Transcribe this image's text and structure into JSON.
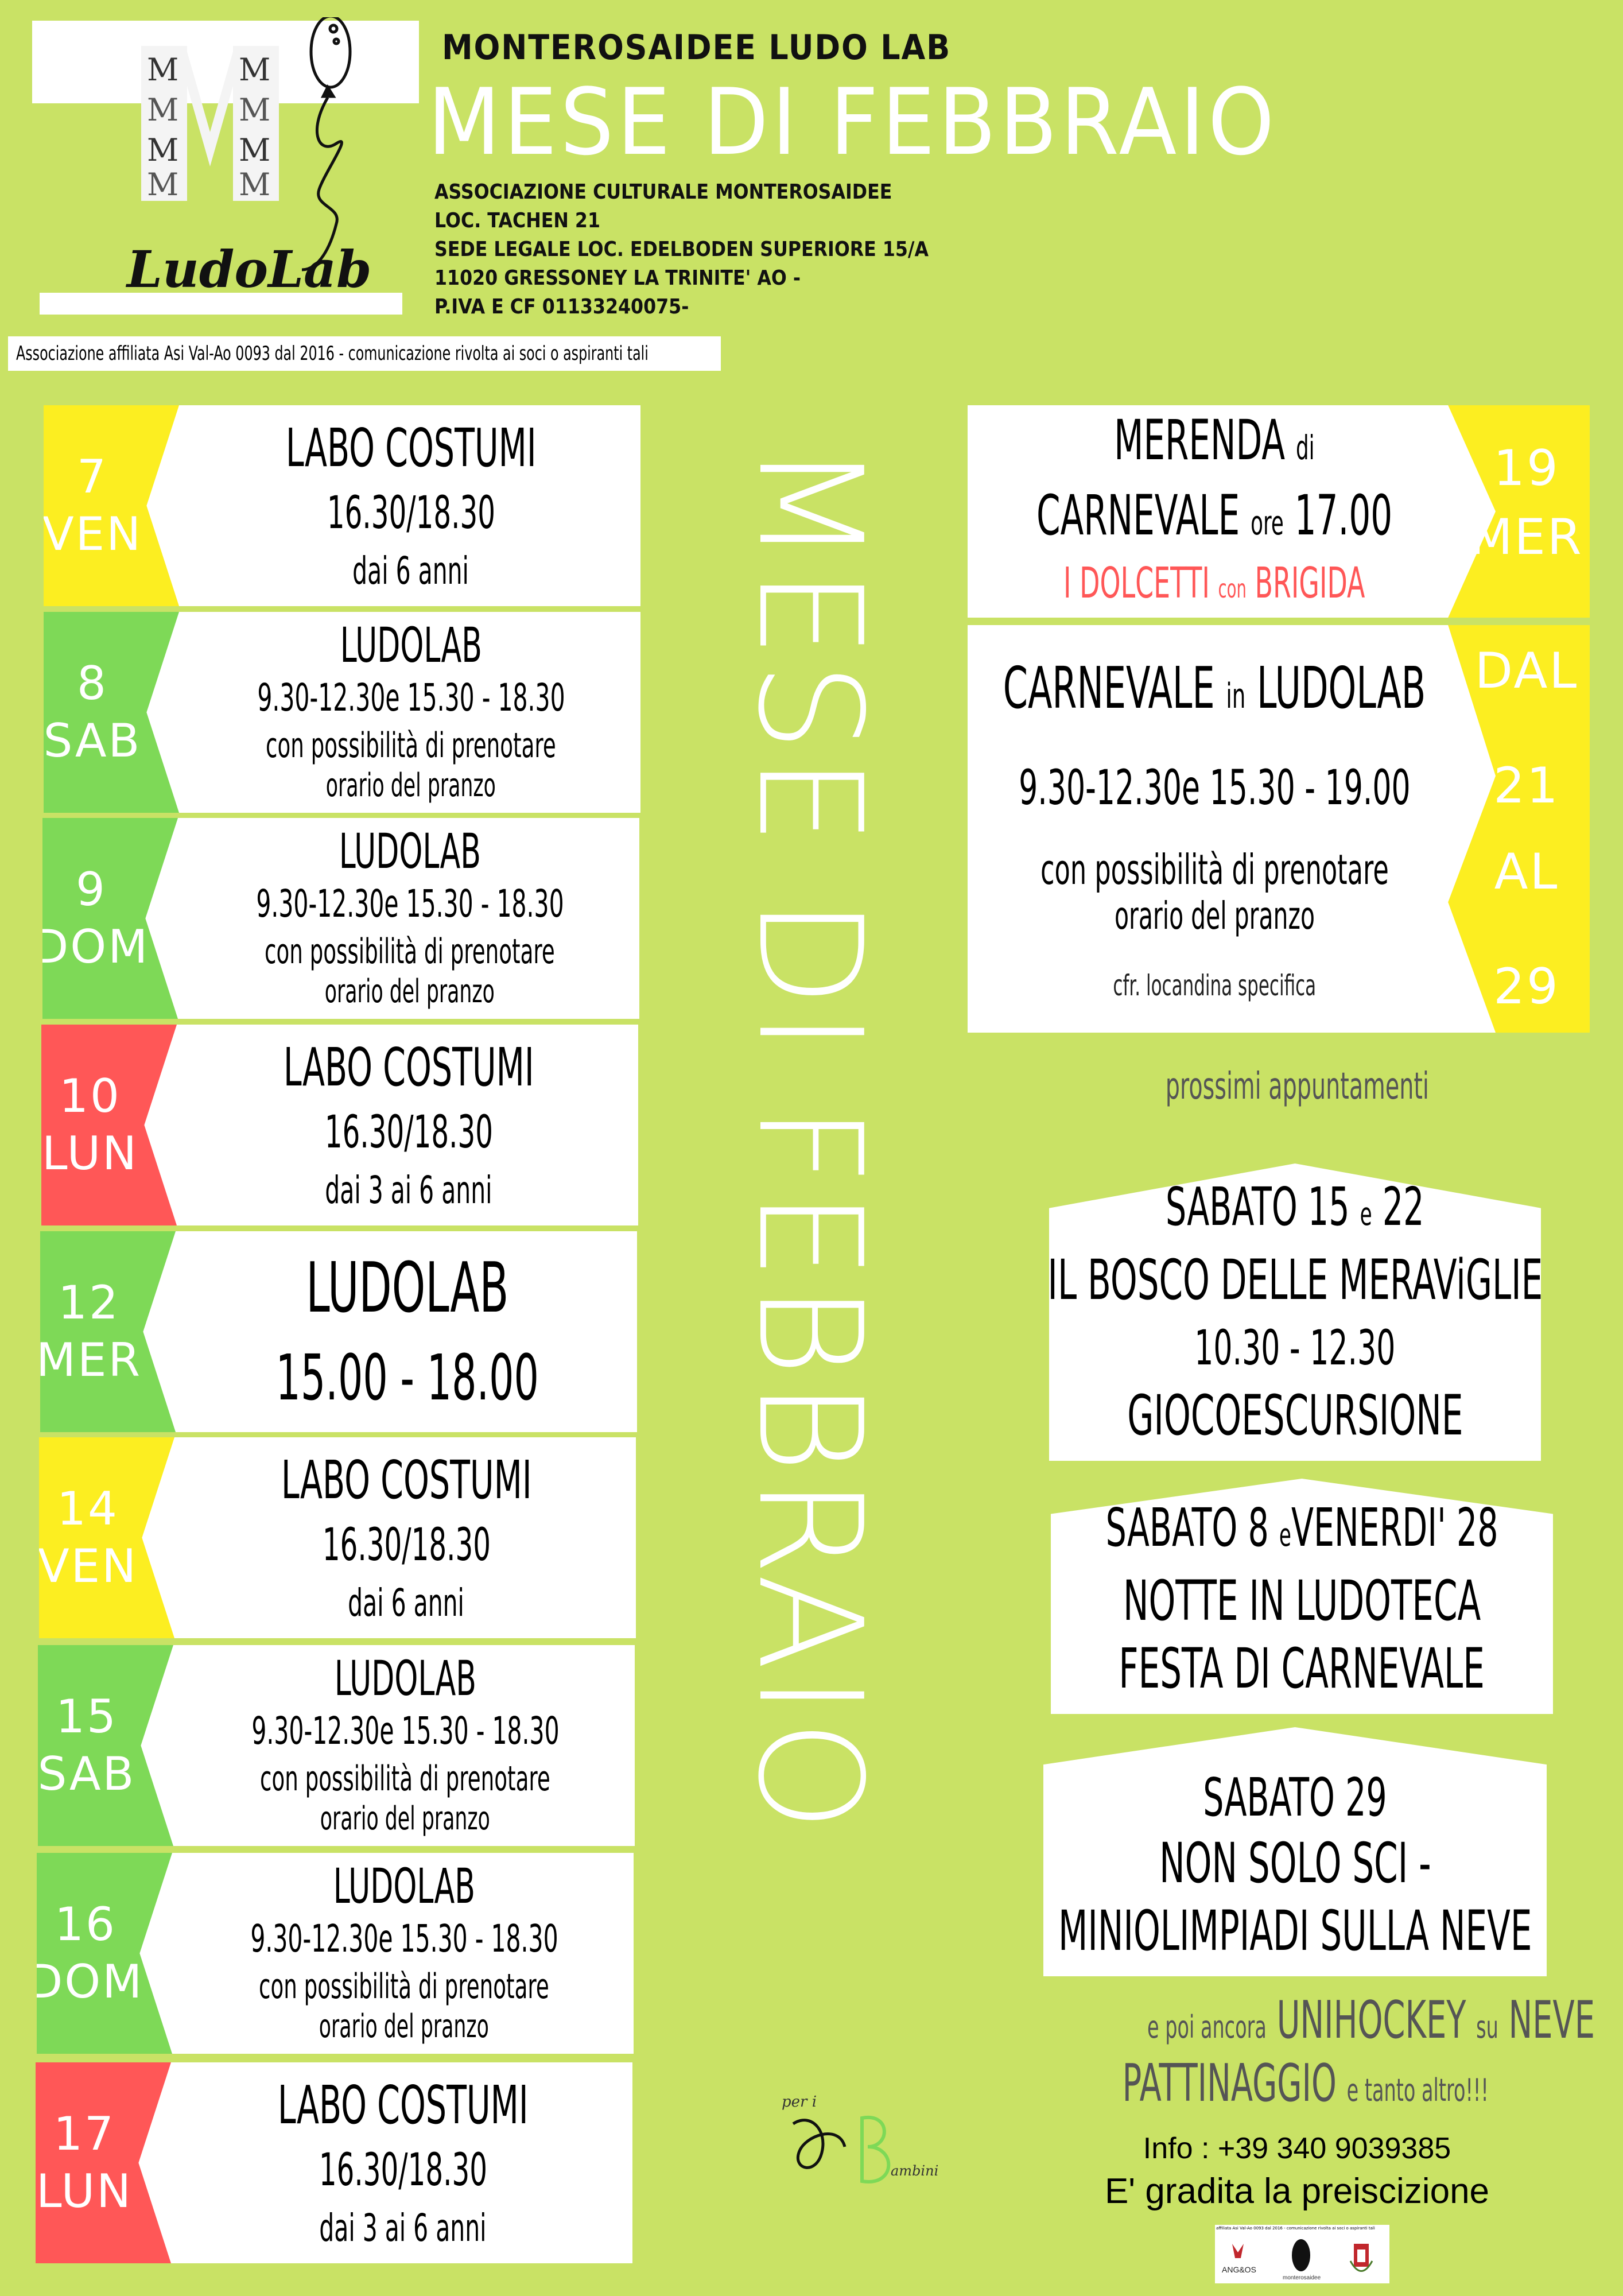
{
  "header": {
    "logo_text": "LudoLab",
    "logo_letters": "M",
    "brand": "MONTEROSAIDEE LUDO LAB",
    "title": "MESE DI FEBBRAIO",
    "address": [
      "ASSOCIAZIONE CULTURALE MONTEROSAIDEE",
      "LOC. TACHEN 21",
      "SEDE LEGALE LOC. EDELBODEN SUPERIORE 15/A",
      "11020 GRESSONEY LA TRINITE' AO -",
      "P.IVA E CF 01133240075-"
    ],
    "affiliation": "Associazione affiliata Asi Val-Ao 0093 dal 2016 - comunicazione rivolta ai soci o aspiranti tali"
  },
  "colors": {
    "background": "#c9e265",
    "yellow": "#fcee21",
    "green": "#7ed957",
    "red": "#ff5757",
    "white": "#ffffff"
  },
  "vertical_title": "MESE DI FEBBRAIO",
  "left_events": [
    {
      "num": "7",
      "day": "VEN",
      "color": "#fcee21",
      "kind": "costumi",
      "title": "LABO COSTUMI",
      "time": "16.30/18.30",
      "age": "dai 6 anni"
    },
    {
      "num": "8",
      "day": "SAB",
      "color": "#7ed957",
      "kind": "ludolab",
      "title": "LUDOLAB",
      "time": "9.30-12.30e 15.30 - 18.30",
      "note1": "con possibilità di prenotare",
      "note2": "orario del pranzo"
    },
    {
      "num": "9",
      "day": "DOM",
      "color": "#7ed957",
      "kind": "ludolab",
      "title": "LUDOLAB",
      "time": "9.30-12.30e 15.30 - 18.30",
      "note1": "con possibilità di prenotare",
      "note2": "orario del pranzo"
    },
    {
      "num": "10",
      "day": "LUN",
      "color": "#ff5757",
      "kind": "costumi",
      "title": "LABO COSTUMI",
      "time": "16.30/18.30",
      "age": "dai 3 ai 6 anni"
    },
    {
      "num": "12",
      "day": "MER",
      "color": "#7ed957",
      "kind": "big",
      "title": "LUDOLAB",
      "time": "15.00 - 18.00"
    },
    {
      "num": "14",
      "day": "VEN",
      "color": "#fcee21",
      "kind": "costumi",
      "title": "LABO COSTUMI",
      "time": "16.30/18.30",
      "age": "dai 6 anni"
    },
    {
      "num": "15",
      "day": "SAB",
      "color": "#7ed957",
      "kind": "ludolab",
      "title": "LUDOLAB",
      "time": "9.30-12.30e 15.30 - 18.30",
      "note1": "con possibilità di prenotare",
      "note2": "orario del pranzo"
    },
    {
      "num": "16",
      "day": "DOM",
      "color": "#7ed957",
      "kind": "ludolab",
      "title": "LUDOLAB",
      "time": "9.30-12.30e 15.30 - 18.30",
      "note1": "con possibilità di prenotare",
      "note2": "orario del pranzo"
    },
    {
      "num": "17",
      "day": "LUN",
      "color": "#ff5757",
      "kind": "costumi",
      "title": "LABO COSTUMI",
      "time": "16.30/18.30",
      "age": "dai 3 ai 6 anni"
    }
  ],
  "right_events": {
    "merenda": {
      "title_a": "MERENDA",
      "title_b": "di",
      "line2_a": "CARNEVALE",
      "line2_b": "ore",
      "line2_c": "17.00",
      "sub_a": "I DOLCETTI",
      "sub_b": "con",
      "sub_c": "BRIGIDA",
      "num": "19",
      "day": "MER"
    },
    "carnevale": {
      "title_a": "CARNEVALE",
      "title_b": "in",
      "title_c": "LUDOLAB",
      "time": "9.30-12.30e 15.30 - 19.00",
      "note1": "con possibilità di prenotare",
      "note2": "orario del pranzo",
      "note3": "cfr. locandina specifica",
      "from_label": "DAL",
      "from": "21",
      "to_label": "AL",
      "to": "29"
    }
  },
  "upcoming": {
    "heading": "prossimi appuntamenti",
    "items": [
      {
        "date_a": "SABATO 15",
        "date_b": "e",
        "date_c": "22",
        "lines": [
          "IL BOSCO DELLE MERAViGLIE",
          "10.30 - 12.30",
          "GIOCOESCURSIONE"
        ]
      },
      {
        "date_a": "SABATO 8",
        "date_b": "e",
        "date_c": "VENERDI' 28",
        "lines": [
          "NOTTE IN LUDOTECA",
          "FESTA DI CARNEVALE"
        ]
      },
      {
        "date_a": "SABATO 29",
        "lines": [
          "NON SOLO SCI -",
          "MINIOLIMPIADI SULLA NEVE"
        ]
      }
    ]
  },
  "extra": {
    "l1_a": "e poi ancora",
    "l1_b": "UNIHOCKEY",
    "l1_c": "su",
    "l1_d": "NEVE",
    "l2_a": "PATTINAGGIO",
    "l2_b": "e tanto altro!!!"
  },
  "info": {
    "phone": "Info : +39 340 9039385",
    "note": "E' gradita la preiscizione"
  },
  "partner_logos": {
    "strip": "affiliata Asi Val-Ao 0093 dal 2016 - comunicazione rivolta ai soci o aspiranti tali",
    "angos": "ANG&OS",
    "monterosaidee": "monterosaidee"
  },
  "bambini_logo": {
    "top": "per i",
    "bottom": "ambini"
  }
}
